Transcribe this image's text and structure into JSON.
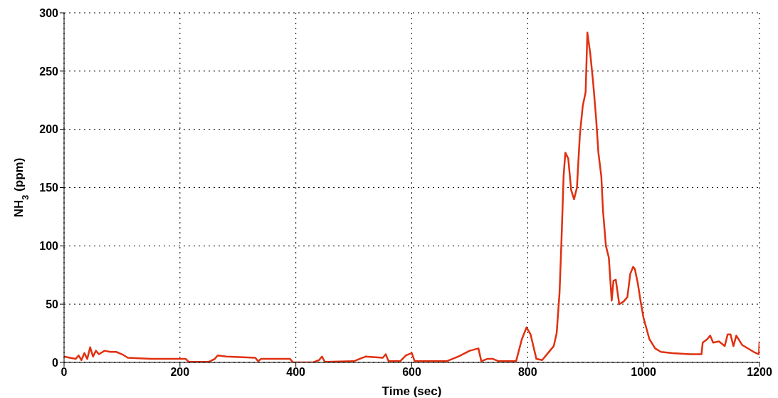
{
  "chart_data": {
    "type": "line",
    "xlabel": "Time (sec)",
    "ylabel": "NH$_{3}$ (ppm)",
    "xlim": [
      0,
      1200
    ],
    "xticks": [
      0,
      200,
      400,
      600,
      800,
      1000,
      1200
    ],
    "ylim": [
      0,
      300
    ],
    "yticks": [
      0,
      50,
      100,
      150,
      200,
      250,
      300
    ],
    "grid": true,
    "line_style": "solid",
    "marker": "none",
    "series": [
      {
        "color": "#e03010",
        "x": [
          0,
          10,
          20,
          25,
          30,
          35,
          40,
          45,
          50,
          55,
          60,
          70,
          80,
          90,
          100,
          110,
          150,
          200,
          210,
          215,
          250,
          260,
          265,
          280,
          330,
          335,
          340,
          390,
          395,
          430,
          440,
          445,
          450,
          500,
          520,
          550,
          555,
          560,
          580,
          590,
          600,
          605,
          620,
          660,
          680,
          700,
          715,
          720,
          730,
          740,
          750,
          780,
          790,
          798,
          805,
          815,
          825,
          835,
          845,
          850,
          855,
          858,
          862,
          865,
          870,
          875,
          880,
          885,
          890,
          895,
          900,
          903,
          908,
          913,
          918,
          922,
          927,
          930,
          935,
          940,
          945,
          948,
          952,
          958,
          965,
          972,
          977,
          982,
          985,
          990,
          995,
          1000,
          1010,
          1020,
          1030,
          1050,
          1080,
          1100,
          1102,
          1110,
          1115,
          1120,
          1130,
          1140,
          1145,
          1150,
          1155,
          1160,
          1170,
          1190,
          1199,
          1200
        ],
        "values": [
          5,
          4,
          3,
          6,
          2,
          8,
          3,
          13,
          5,
          10,
          7,
          10,
          9,
          9,
          7,
          4,
          3,
          3,
          3,
          0.5,
          0.5,
          3,
          6,
          5,
          4,
          1,
          3,
          3,
          0,
          0,
          2,
          5,
          0.5,
          1,
          5,
          4,
          7,
          1,
          1,
          6,
          8,
          1,
          1,
          1,
          5,
          10,
          12,
          1,
          3,
          3,
          1,
          1,
          20,
          30,
          24,
          3,
          2,
          8,
          14,
          25,
          60,
          100,
          160,
          180,
          175,
          148,
          140,
          150,
          195,
          220,
          232,
          283,
          265,
          240,
          210,
          180,
          160,
          130,
          100,
          90,
          53,
          70,
          71,
          50,
          52,
          56,
          76,
          82,
          80,
          68,
          52,
          38,
          20,
          12,
          9,
          8,
          7,
          7,
          17,
          20,
          23,
          17,
          18,
          14,
          24,
          24,
          14,
          23,
          15,
          9,
          7,
          18
        ]
      }
    ]
  }
}
